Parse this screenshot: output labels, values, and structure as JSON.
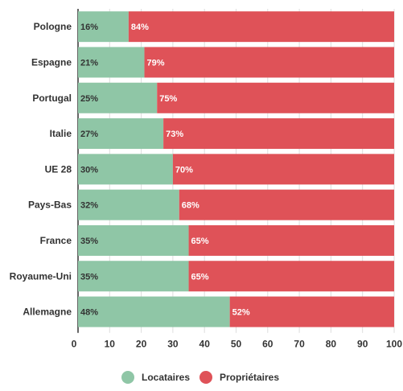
{
  "chart_data": {
    "type": "bar",
    "orientation": "horizontal",
    "stacked": true,
    "categories": [
      "Pologne",
      "Espagne",
      "Portugal",
      "Italie",
      "UE 28",
      "Pays-Bas",
      "France",
      "Royaume-Uni",
      "Allemagne"
    ],
    "series": [
      {
        "name": "Locataires",
        "color": "#8fc6a6",
        "label_color": "#333333",
        "values": [
          16,
          21,
          25,
          27,
          30,
          32,
          35,
          35,
          48
        ]
      },
      {
        "name": "Propriétaires",
        "color": "#df5258",
        "label_color": "#ffffff",
        "values": [
          84,
          79,
          75,
          73,
          70,
          68,
          65,
          65,
          52
        ]
      }
    ],
    "value_suffix": "%",
    "xlim": [
      0,
      100
    ],
    "xticks": [
      0,
      10,
      20,
      30,
      40,
      50,
      60,
      70,
      80,
      90,
      100
    ],
    "grid": true,
    "legend_position": "bottom-center",
    "title": "",
    "xlabel": "",
    "ylabel": ""
  }
}
